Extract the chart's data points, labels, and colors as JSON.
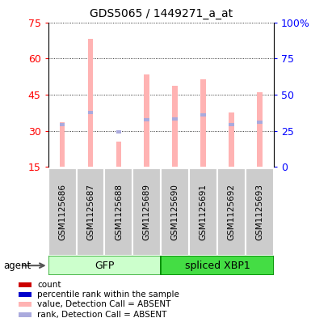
{
  "title": "GDS5065 / 1449271_a_at",
  "samples": [
    "GSM1125686",
    "GSM1125687",
    "GSM1125688",
    "GSM1125689",
    "GSM1125690",
    "GSM1125691",
    "GSM1125692",
    "GSM1125693"
  ],
  "pink_bars": [
    33.5,
    68.0,
    25.5,
    53.5,
    48.5,
    51.5,
    37.5,
    46.0
  ],
  "blue_bars": [
    32.5,
    37.5,
    29.5,
    34.5,
    35.0,
    36.5,
    32.5,
    33.5
  ],
  "left_yticks": [
    15,
    30,
    45,
    60,
    75
  ],
  "right_yticks": [
    0,
    25,
    50,
    75,
    100
  ],
  "right_yticklabels": [
    "0",
    "25",
    "50",
    "75",
    "100%"
  ],
  "ylim_left": [
    15,
    75
  ],
  "ylim_right": [
    0,
    100
  ],
  "pink_color": "#FFB3B3",
  "blue_color": "#AAAADD",
  "red_color": "#CC0000",
  "dark_blue_color": "#0000CC",
  "gfp_bg": "#CCFFCC",
  "xbp1_bg": "#44DD44",
  "sample_bg": "#CCCCCC",
  "legend_items": [
    "count",
    "percentile rank within the sample",
    "value, Detection Call = ABSENT",
    "rank, Detection Call = ABSENT"
  ],
  "legend_colors": [
    "#CC0000",
    "#0000CC",
    "#FFB3B3",
    "#AAAADD"
  ]
}
